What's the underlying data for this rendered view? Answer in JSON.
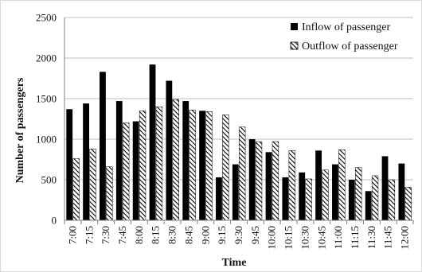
{
  "chart_data": {
    "type": "bar",
    "xlabel": "Time",
    "ylabel": "Number of passengers",
    "ylim": [
      0,
      2500
    ],
    "yticks": [
      "0",
      "500",
      "1000",
      "1500",
      "2000",
      "2500"
    ],
    "grid": true,
    "legend_position": "top-right",
    "categories": [
      "7:00",
      "7:15",
      "7:30",
      "7:45",
      "8:00",
      "8:15",
      "8:30",
      "8:45",
      "9:00",
      "9:15",
      "9:30",
      "9:45",
      "10:00",
      "10:15",
      "10:30",
      "10:45",
      "11:00",
      "11:15",
      "11:30",
      "11:45",
      "12:00"
    ],
    "series": [
      {
        "name": "Inflow of passenger",
        "pattern": "solid",
        "color": "#000000",
        "values": [
          1370,
          1440,
          1830,
          1470,
          1220,
          1920,
          1720,
          1470,
          1350,
          530,
          690,
          1000,
          840,
          530,
          590,
          860,
          690,
          500,
          360,
          790,
          700
        ]
      },
      {
        "name": "Outflow of passenger",
        "pattern": "hatch",
        "color": "#000000",
        "values": [
          760,
          880,
          660,
          1200,
          1350,
          1400,
          1490,
          1360,
          1340,
          1300,
          1150,
          970,
          970,
          860,
          510,
          620,
          870,
          650,
          550,
          500,
          410
        ]
      }
    ]
  }
}
